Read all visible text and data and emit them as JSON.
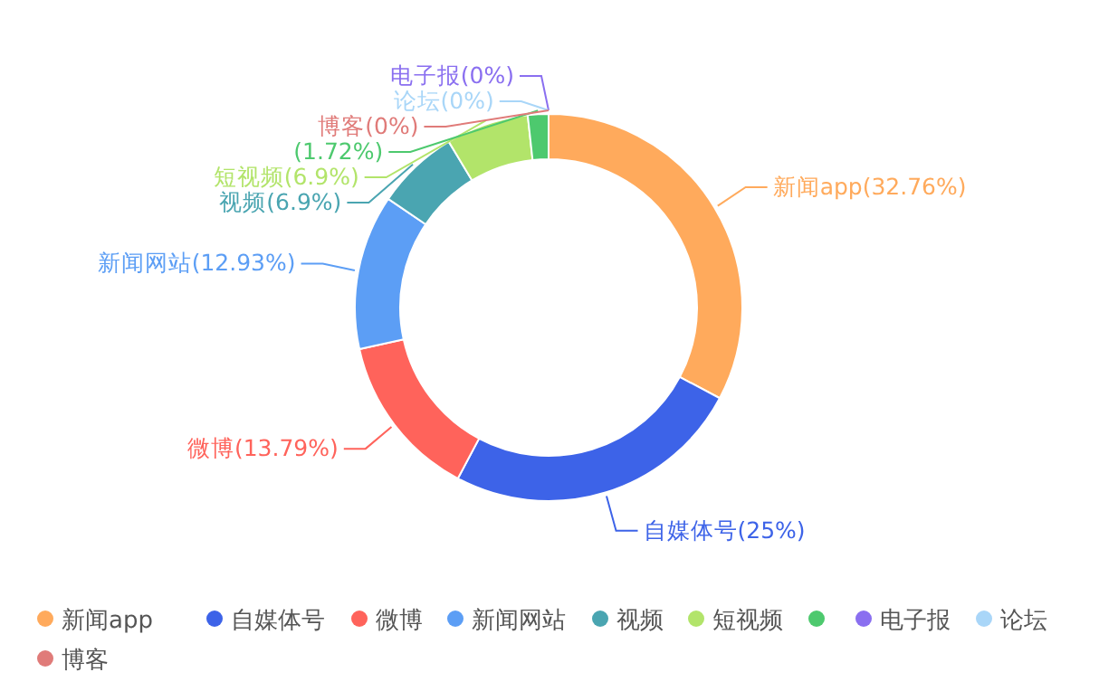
{
  "chart_data": {
    "type": "donut",
    "categories": [
      "新闻app",
      "自媒体号",
      "微博",
      "新闻网站",
      "视频",
      "短视频",
      null,
      "电子报",
      "论坛",
      "博客"
    ],
    "values": [
      32.76,
      25,
      13.79,
      12.93,
      6.9,
      6.9,
      1.72,
      0,
      0,
      0
    ],
    "value_labels": [
      "(32.76%)",
      "(25%)",
      "(13.79%)",
      "(12.93%)",
      "(6.9%)",
      "(6.9%)",
      "(1.72%)",
      "(0%)",
      "(0%)",
      "(0%)"
    ],
    "colors": [
      "#ffaa5c",
      "#3d63e8",
      "#ff635b",
      "#5c9ef5",
      "#4aa5b1",
      "#b2e46a",
      "#4dc96e",
      "#8a6ff0",
      "#a9d6f8",
      "#e07b79"
    ],
    "legend": "bottom"
  }
}
